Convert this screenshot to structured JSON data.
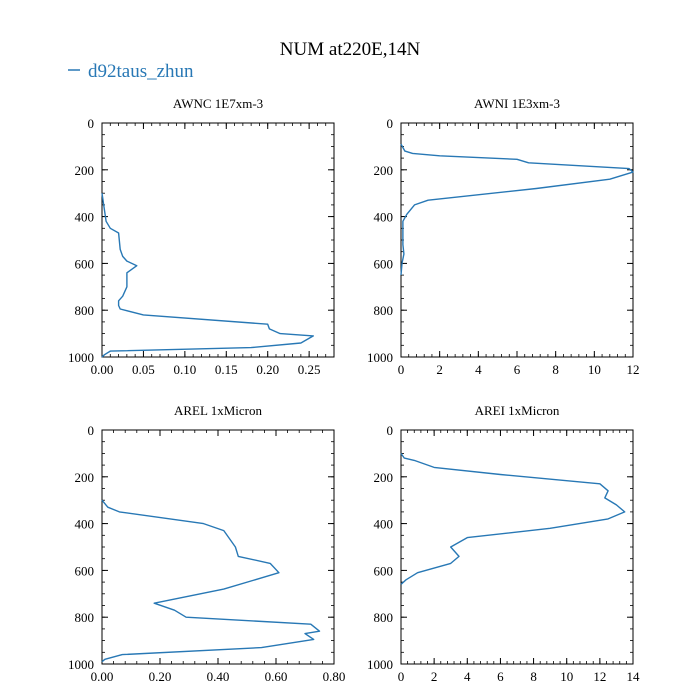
{
  "figure": {
    "title": "NUM at220E,14N",
    "legend_label": "d92taus_zhun",
    "series_color": "#2878b5"
  },
  "chart_data": [
    {
      "type": "line",
      "title": "AWNC  1E7xm-3",
      "xlabel": "",
      "ylabel": "",
      "xlim": [
        0,
        0.28
      ],
      "ylim": [
        1000,
        0
      ],
      "xticks": [
        0,
        0.05,
        0.1,
        0.15,
        0.2,
        0.25
      ],
      "xtick_labels": [
        "0.00",
        "0.05",
        "0.10",
        "0.15",
        "0.20",
        "0.25"
      ],
      "yticks": [
        0,
        200,
        400,
        600,
        800,
        1000
      ],
      "ytick_labels": [
        "0",
        "200",
        "400",
        "600",
        "800",
        "1000"
      ],
      "series": [
        {
          "name": "d92taus_zhun",
          "x": [
            0,
            0.005,
            0.01,
            0.02,
            0.022,
            0.025,
            0.03,
            0.042,
            0.03,
            0.03,
            0.025,
            0.02,
            0.02,
            0.022,
            0.05,
            0.2,
            0.202,
            0.215,
            0.255,
            0.24,
            0.18,
            0.01,
            0.003,
            0
          ],
          "y": [
            300,
            420,
            450,
            470,
            540,
            570,
            590,
            610,
            640,
            700,
            740,
            760,
            780,
            795,
            820,
            860,
            880,
            900,
            910,
            940,
            960,
            975,
            990,
            1000
          ]
        }
      ]
    },
    {
      "type": "line",
      "title": "AWNI  1E3xm-3",
      "xlabel": "",
      "ylabel": "",
      "xlim": [
        0,
        12
      ],
      "ylim": [
        1000,
        0
      ],
      "xticks": [
        0,
        2,
        4,
        6,
        8,
        10,
        12
      ],
      "xtick_labels": [
        "0",
        "2",
        "4",
        "6",
        "8",
        "10",
        "12"
      ],
      "yticks": [
        0,
        200,
        400,
        600,
        800,
        1000
      ],
      "ytick_labels": [
        "0",
        "200",
        "400",
        "600",
        "800",
        "1000"
      ],
      "series": [
        {
          "name": "d92taus_zhun",
          "x": [
            0,
            0.2,
            0.6,
            2.0,
            6.0,
            6.6,
            11.8,
            12.0,
            10.8,
            7.0,
            1.4,
            0.7,
            0.3,
            0.1,
            0.1,
            0.15,
            0.05,
            0
          ],
          "y": [
            90,
            120,
            130,
            140,
            155,
            170,
            195,
            210,
            240,
            280,
            330,
            350,
            390,
            420,
            520,
            560,
            600,
            650
          ]
        }
      ]
    },
    {
      "type": "line",
      "title": "AREL  1xMicron",
      "xlabel": "",
      "ylabel": "",
      "xlim": [
        0,
        0.8
      ],
      "ylim": [
        1000,
        0
      ],
      "xticks": [
        0,
        0.2,
        0.4,
        0.6,
        0.8
      ],
      "xtick_labels": [
        "0.00",
        "0.20",
        "0.40",
        "0.60",
        "0.80"
      ],
      "yticks": [
        0,
        200,
        400,
        600,
        800,
        1000
      ],
      "ytick_labels": [
        "0",
        "200",
        "400",
        "600",
        "800",
        "1000"
      ],
      "series": [
        {
          "name": "d92taus_zhun",
          "x": [
            0,
            0.02,
            0.06,
            0.35,
            0.42,
            0.46,
            0.47,
            0.58,
            0.61,
            0.42,
            0.18,
            0.25,
            0.29,
            0.72,
            0.75,
            0.7,
            0.73,
            0.55,
            0.07,
            0.01,
            0
          ],
          "y": [
            300,
            330,
            350,
            400,
            430,
            500,
            540,
            570,
            610,
            680,
            740,
            770,
            800,
            830,
            860,
            870,
            895,
            930,
            960,
            980,
            990
          ]
        }
      ]
    },
    {
      "type": "line",
      "title": "AREI  1xMicron",
      "xlabel": "",
      "ylabel": "",
      "xlim": [
        0,
        14
      ],
      "ylim": [
        1000,
        0
      ],
      "xticks": [
        0,
        2,
        4,
        6,
        8,
        10,
        12,
        14
      ],
      "xtick_labels": [
        "0",
        "2",
        "4",
        "6",
        "8",
        "10",
        "12",
        "14"
      ],
      "yticks": [
        0,
        200,
        400,
        600,
        800,
        1000
      ],
      "ytick_labels": [
        "0",
        "200",
        "400",
        "600",
        "800",
        "1000"
      ],
      "series": [
        {
          "name": "d92taus_zhun",
          "x": [
            0,
            0.2,
            0.8,
            2.0,
            6.0,
            12.0,
            12.5,
            12.3,
            13.0,
            13.5,
            12.5,
            9.0,
            4.0,
            3.0,
            3.5,
            3.0,
            1.0,
            0.3,
            0
          ],
          "y": [
            100,
            120,
            130,
            160,
            190,
            230,
            260,
            290,
            320,
            350,
            380,
            420,
            460,
            500,
            540,
            570,
            610,
            640,
            660
          ]
        }
      ]
    }
  ]
}
